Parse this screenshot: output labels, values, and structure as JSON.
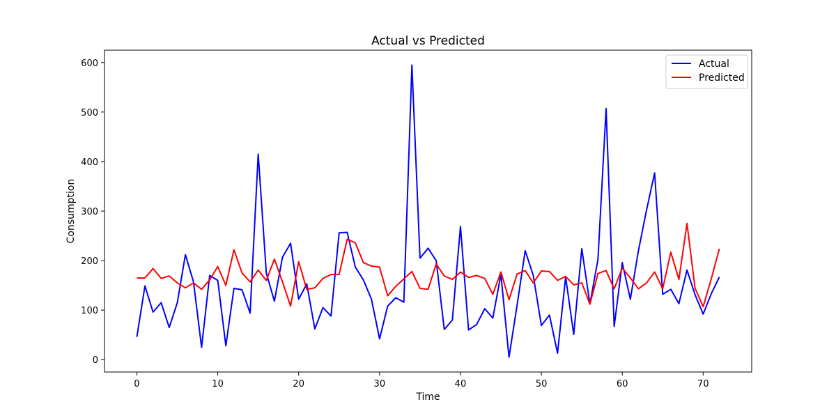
{
  "chart_data": {
    "type": "line",
    "title": "Actual vs Predicted",
    "xlabel": "Time",
    "ylabel": "Consumption",
    "xlim": [
      -4,
      76
    ],
    "ylim": [
      -25,
      625
    ],
    "xticks": [
      0,
      10,
      20,
      30,
      40,
      50,
      60,
      70
    ],
    "yticks": [
      0,
      100,
      200,
      300,
      400,
      500,
      600
    ],
    "grid": false,
    "legend_position": "top-right",
    "x": [
      0,
      1,
      2,
      3,
      4,
      5,
      6,
      7,
      8,
      9,
      10,
      11,
      12,
      13,
      14,
      15,
      16,
      17,
      18,
      19,
      20,
      21,
      22,
      23,
      24,
      25,
      26,
      27,
      28,
      29,
      30,
      31,
      32,
      33,
      34,
      35,
      36,
      37,
      38,
      39,
      40,
      41,
      42,
      43,
      44,
      45,
      46,
      47,
      48,
      49,
      50,
      51,
      52,
      53,
      54,
      55,
      56,
      57,
      58,
      59,
      60,
      61,
      62,
      63,
      64,
      65,
      66,
      67,
      68,
      69,
      70,
      71,
      72
    ],
    "series": [
      {
        "name": "Actual",
        "color": "#0000ff",
        "values": [
          46,
          149,
          96,
          115,
          65,
          115,
          212,
          157,
          25,
          170,
          160,
          28,
          144,
          141,
          94,
          415,
          175,
          118,
          207,
          235,
          122,
          153,
          62,
          105,
          88,
          256,
          257,
          187,
          161,
          122,
          42,
          108,
          125,
          116,
          595,
          205,
          225,
          200,
          61,
          80,
          269,
          60,
          71,
          103,
          84,
          172,
          5,
          110,
          220,
          170,
          69,
          90,
          13,
          167,
          51,
          224,
          112,
          203,
          507,
          67,
          196,
          122,
          220,
          302,
          377,
          132,
          142,
          113,
          181,
          131,
          92,
          133,
          167
        ]
      },
      {
        "name": "Predicted",
        "color": "#ff0000",
        "values": [
          165,
          165,
          184,
          164,
          169,
          155,
          145,
          155,
          142,
          161,
          188,
          150,
          222,
          175,
          157,
          181,
          160,
          203,
          157,
          108,
          198,
          142,
          145,
          164,
          172,
          172,
          243,
          236,
          196,
          189,
          187,
          129,
          148,
          163,
          178,
          144,
          142,
          193,
          169,
          162,
          177,
          166,
          170,
          164,
          132,
          177,
          121,
          173,
          180,
          155,
          179,
          178,
          160,
          168,
          151,
          155,
          112,
          174,
          180,
          143,
          185,
          165,
          143,
          155,
          177,
          143,
          217,
          162,
          275,
          144,
          107,
          163,
          224
        ]
      }
    ]
  }
}
